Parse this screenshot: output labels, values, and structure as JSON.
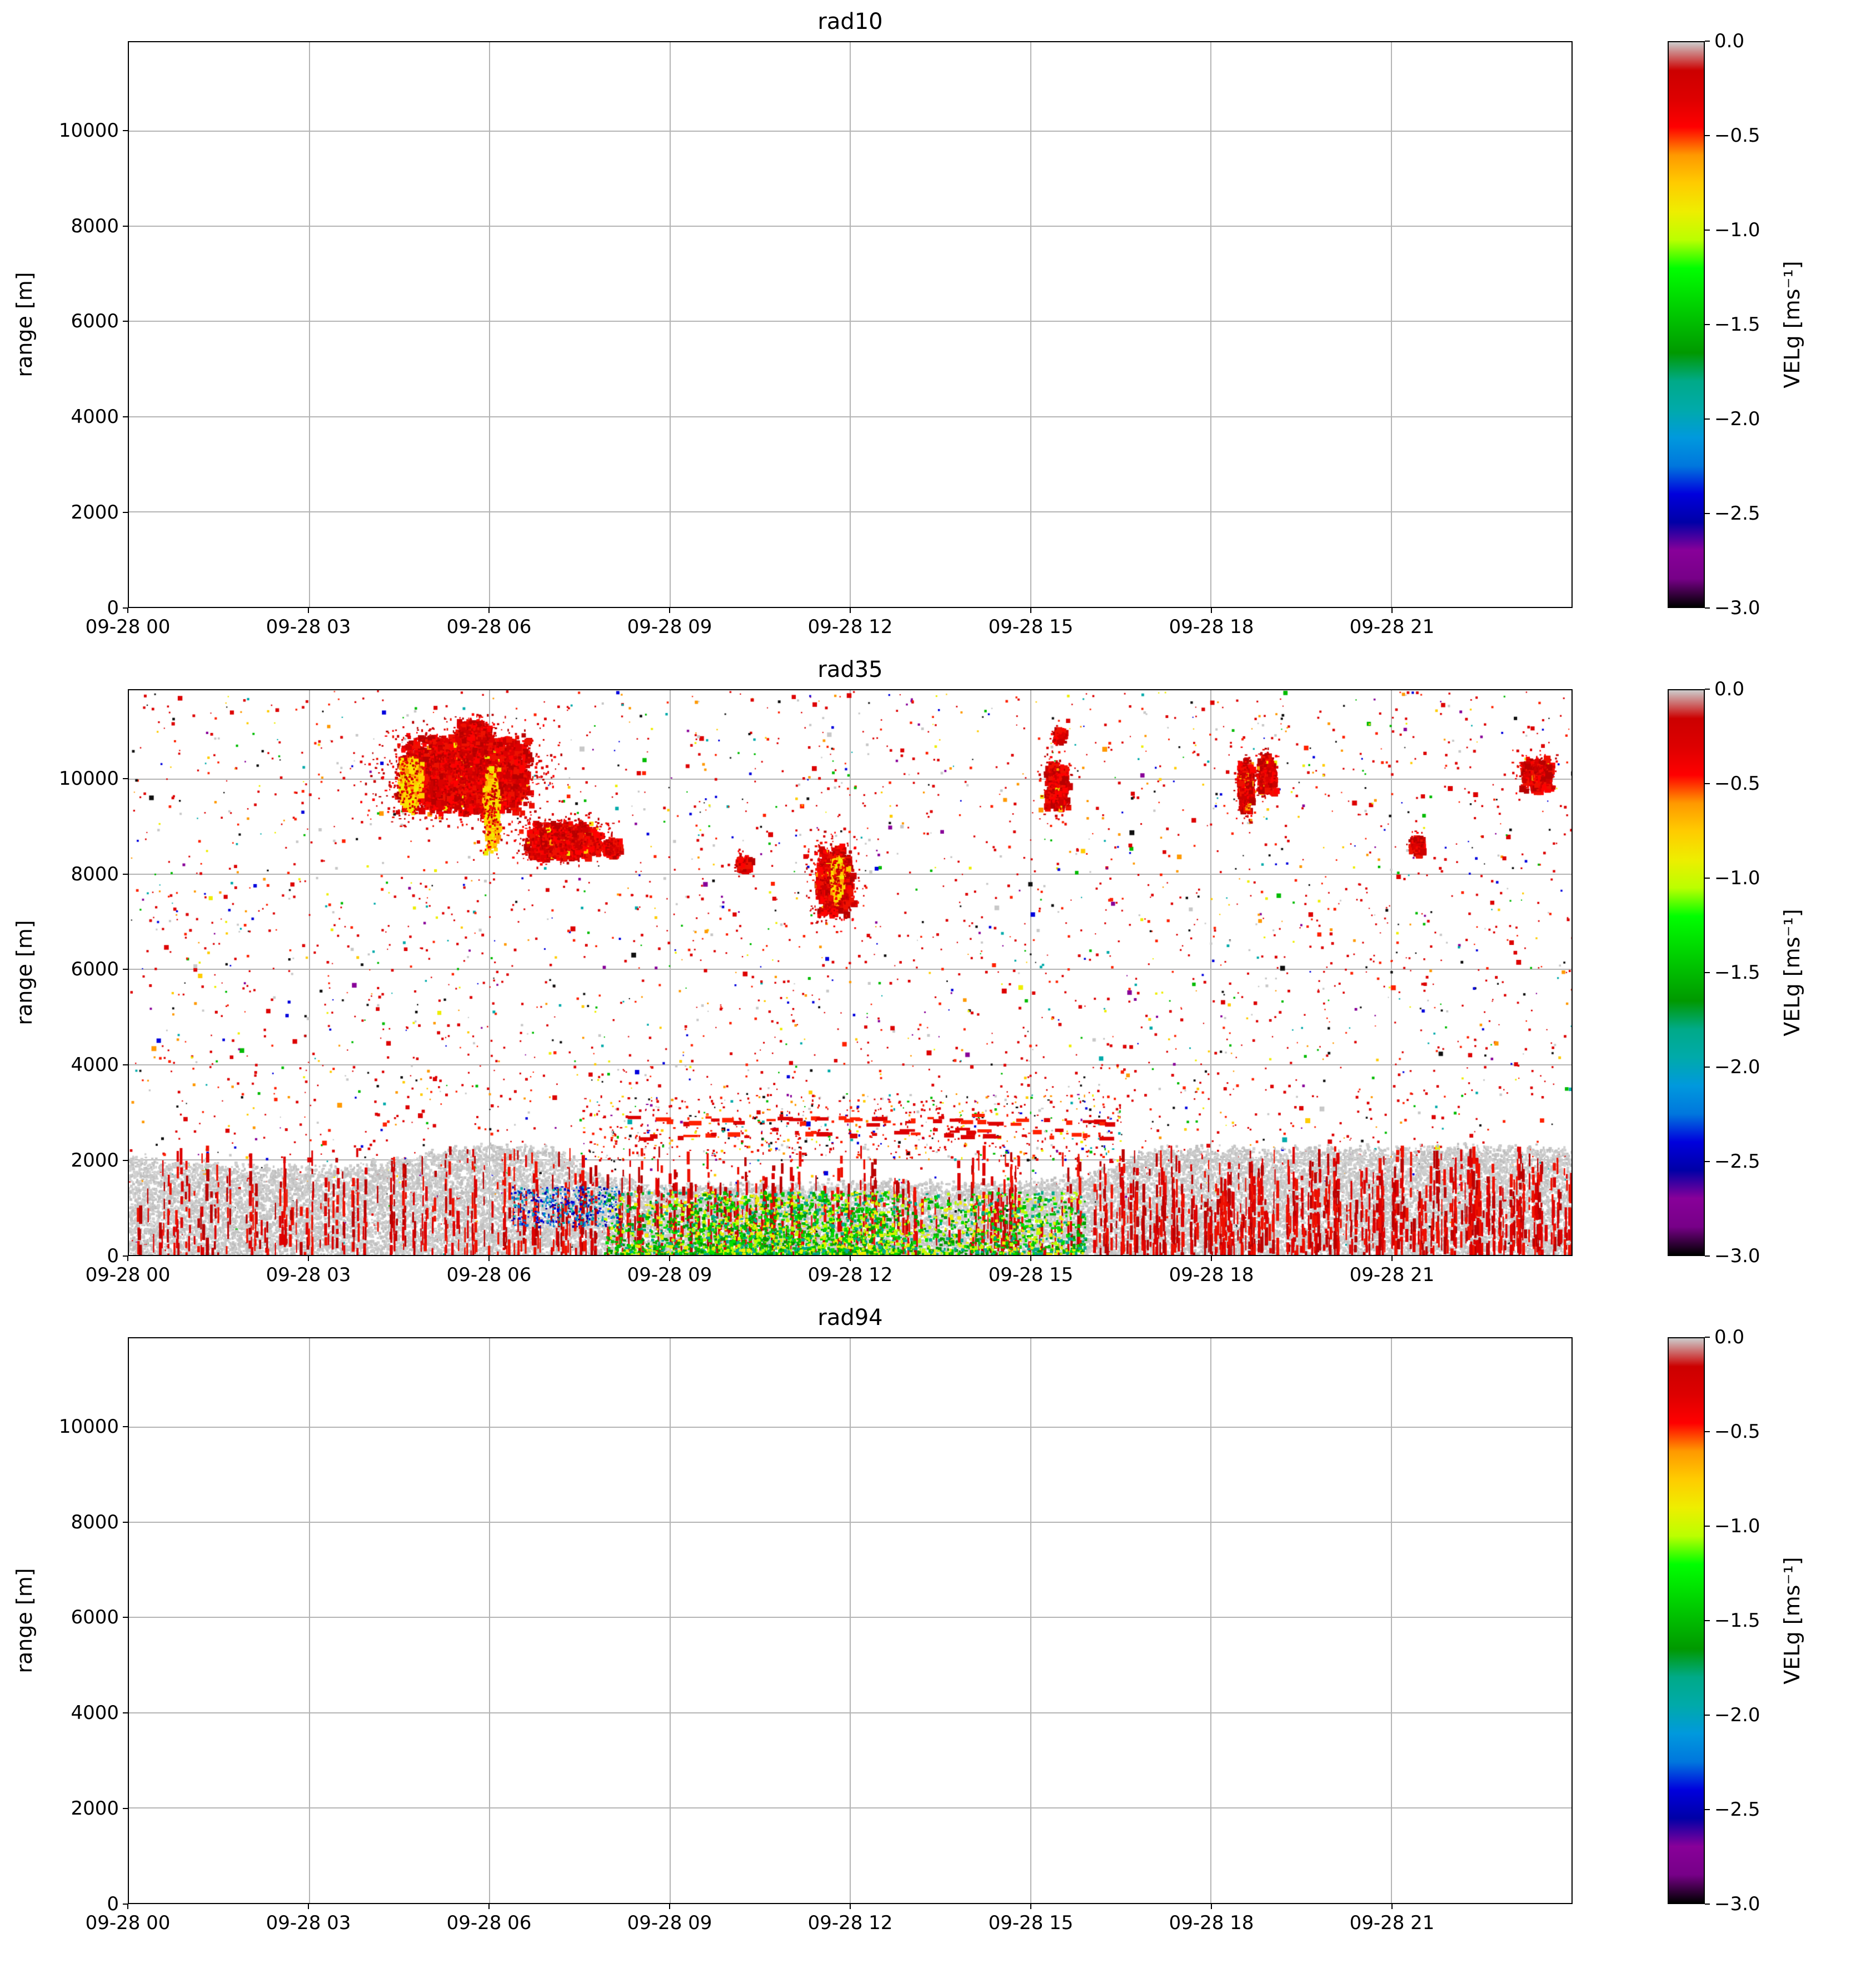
{
  "chart_data": {
    "type": "heatmap",
    "panels": [
      {
        "title": "rad10",
        "has_data": false,
        "description": "empty panel, grid only, no echoes"
      },
      {
        "title": "rad35",
        "has_data": true,
        "description": "time-height Doppler velocity field: sparse speckle noise aloft, red cloud echoes 7500-11200 m mainly 04-08 h and around 12, 15, 19, 21, 23 h, dense gray boundary layer below ~2300 m with red vertical fall streaks, green/yellow patches below 1400 m between 08-16 h, blue specks 06:30-08:00",
        "features": {
          "noise_seed": 928374,
          "speckle": {
            "count": 3800,
            "extra_band": {
              "h": [
                7.5,
                16.5
              ],
              "m": [
                2000,
                3400
              ],
              "count": 650
            },
            "palette": [
              {
                "c": "#dd0000",
                "w": 0.46
              },
              {
                "c": "#ff2200",
                "w": 0.12
              },
              {
                "c": "#ff9900",
                "w": 0.06
              },
              {
                "c": "#c8c8c8",
                "w": 0.08
              },
              {
                "c": "#eeee00",
                "w": 0.03
              },
              {
                "c": "#00bb00",
                "w": 0.05
              },
              {
                "c": "#00aaaa",
                "w": 0.04
              },
              {
                "c": "#0000dd",
                "w": 0.04
              },
              {
                "c": "#880099",
                "w": 0.03
              },
              {
                "c": "#101010",
                "w": 0.06
              },
              {
                "c": "#ffcc00",
                "w": 0.03
              }
            ]
          },
          "clouds": [
            {
              "h": 5.55,
              "m": 10150,
              "rh": 1.15,
              "rm": 850,
              "n": 3000,
              "yellow": 0.05
            },
            {
              "h": 5.7,
              "m": 11050,
              "rh": 0.3,
              "rm": 250,
              "n": 320,
              "yellow": 0
            },
            {
              "h": 7.2,
              "m": 8750,
              "rh": 0.65,
              "rm": 400,
              "n": 1100,
              "yellow": 0.08
            },
            {
              "h": 4.65,
              "m": 9900,
              "rh": 0.2,
              "rm": 600,
              "n": 420,
              "palette": "yellow"
            },
            {
              "h": 6.0,
              "m": 9400,
              "rh": 0.13,
              "rm": 950,
              "n": 450,
              "palette": "yellow"
            },
            {
              "h": 8.0,
              "m": 8600,
              "rh": 0.15,
              "rm": 220,
              "n": 130,
              "yellow": 0
            },
            {
              "h": 10.2,
              "m": 8250,
              "rh": 0.12,
              "rm": 180,
              "n": 90,
              "yellow": 0
            },
            {
              "h": 11.7,
              "m": 7900,
              "rh": 0.32,
              "rm": 760,
              "n": 850,
              "yellow": 0.1
            },
            {
              "h": 11.75,
              "m": 7950,
              "rh": 0.1,
              "rm": 480,
              "n": 260,
              "palette": "yellow"
            },
            {
              "h": 15.4,
              "m": 9900,
              "rh": 0.2,
              "rm": 550,
              "n": 380,
              "yellow": 0.05
            },
            {
              "h": 15.45,
              "m": 10950,
              "rh": 0.1,
              "rm": 160,
              "n": 60,
              "yellow": 0
            },
            {
              "h": 18.55,
              "m": 9900,
              "rh": 0.13,
              "rm": 600,
              "n": 320,
              "yellow": 0.1
            },
            {
              "h": 18.9,
              "m": 10150,
              "rh": 0.15,
              "rm": 430,
              "n": 300,
              "yellow": 0.05
            },
            {
              "h": 21.4,
              "m": 8650,
              "rh": 0.12,
              "rm": 200,
              "n": 100,
              "yellow": 0
            },
            {
              "h": 23.4,
              "m": 10150,
              "rh": 0.28,
              "rm": 360,
              "n": 380,
              "yellow": 0.06
            }
          ],
          "boundary_layer": {
            "top_profile": [
              [
                0,
                2050
              ],
              [
                1,
                1950
              ],
              [
                2,
                1900
              ],
              [
                3,
                1850
              ],
              [
                4,
                1900
              ],
              [
                5,
                2150
              ],
              [
                6,
                2350
              ],
              [
                7,
                2250
              ],
              [
                7.8,
                1700
              ],
              [
                8.5,
                1500
              ],
              [
                9,
                1450
              ],
              [
                10,
                1500
              ],
              [
                11,
                1500
              ],
              [
                12,
                1550
              ],
              [
                13,
                1500
              ],
              [
                14,
                1500
              ],
              [
                15,
                1550
              ],
              [
                16,
                1700
              ],
              [
                17,
                2200
              ],
              [
                18,
                2300
              ],
              [
                19,
                2250
              ],
              [
                20,
                2300
              ],
              [
                21,
                2250
              ],
              [
                22,
                2300
              ],
              [
                23,
                2250
              ],
              [
                24,
                2250
              ]
            ],
            "gray_colors": [
              "#c6c6c6",
              "#cecece",
              "#bebebe",
              "#d2d2d2"
            ],
            "red_streaks": {
              "count": 470,
              "extra": {
                "h": [
                  16.8,
                  24
                ],
                "count": 140
              },
              "colors": [
                "#dd0000",
                "#ee1100",
                "#bb0000"
              ]
            },
            "green_zone": {
              "h": [
                7.9,
                15.9
              ],
              "m": [
                40,
                1350
              ],
              "count": 2800,
              "peak_h": [
                9.4,
                12.8
              ],
              "colors": [
                "#00bb00",
                "#00dd00",
                "#009900",
                "#bbff00",
                "#eeee00",
                "#00aa88"
              ]
            },
            "blue_zone": {
              "h": [
                6.35,
                8.15
              ],
              "m": [
                600,
                1450
              ],
              "count": 380,
              "colors": [
                "#0000dd",
                "#0077dd",
                "#0000a7",
                "#00aaaa"
              ]
            },
            "elevated_rows": {
              "h": [
                8.3,
                16.3
              ],
              "rows_m": [
                2580,
                2860
              ],
              "seg_prob": 0.5,
              "colors": [
                "#dd0000",
                "#ff2200"
              ]
            }
          }
        }
      },
      {
        "title": "rad94",
        "has_data": false,
        "description": "empty panel, grid only, no echoes"
      }
    ],
    "x": {
      "date": "09-28",
      "tick_hours": [
        0,
        3,
        6,
        9,
        12,
        15,
        18,
        21
      ],
      "tick_labels": [
        "09-28 00",
        "09-28 03",
        "09-28 06",
        "09-28 09",
        "09-28 12",
        "09-28 15",
        "09-28 18",
        "09-28 21"
      ],
      "range_hours": [
        0,
        24
      ]
    },
    "y": {
      "label": "range [m]",
      "ticks": [
        0,
        2000,
        4000,
        6000,
        8000,
        10000
      ],
      "lim": [
        0,
        11870
      ]
    },
    "colorbar": {
      "label": "VELg [ms⁻¹]",
      "tick_labels": [
        "0.0",
        "−0.5",
        "−1.0",
        "−1.5",
        "−2.0",
        "−2.5",
        "−3.0"
      ],
      "lim": [
        0,
        -3
      ],
      "colormap": "nipy_spectral reversed (gray at 0, black at −3)",
      "stops": [
        [
          0.0,
          "#cccccc"
        ],
        [
          0.05,
          "#cc0000"
        ],
        [
          0.1,
          "#dd0000"
        ],
        [
          0.15,
          "#ff0000"
        ],
        [
          0.2,
          "#ff9900"
        ],
        [
          0.25,
          "#ffcc00"
        ],
        [
          0.3,
          "#eeee00"
        ],
        [
          0.35,
          "#bbff00"
        ],
        [
          0.4,
          "#00ff00"
        ],
        [
          0.45,
          "#00dd00"
        ],
        [
          0.5,
          "#00bb00"
        ],
        [
          0.55,
          "#009900"
        ],
        [
          0.6,
          "#00aa88"
        ],
        [
          0.65,
          "#00aaaa"
        ],
        [
          0.7,
          "#0099dd"
        ],
        [
          0.75,
          "#0077dd"
        ],
        [
          0.8,
          "#0000dd"
        ],
        [
          0.85,
          "#0000a7"
        ],
        [
          0.9,
          "#880099"
        ],
        [
          0.95,
          "#770088"
        ],
        [
          1.0,
          "#000000"
        ]
      ],
      "grid_color": "#b4b4b4"
    }
  }
}
